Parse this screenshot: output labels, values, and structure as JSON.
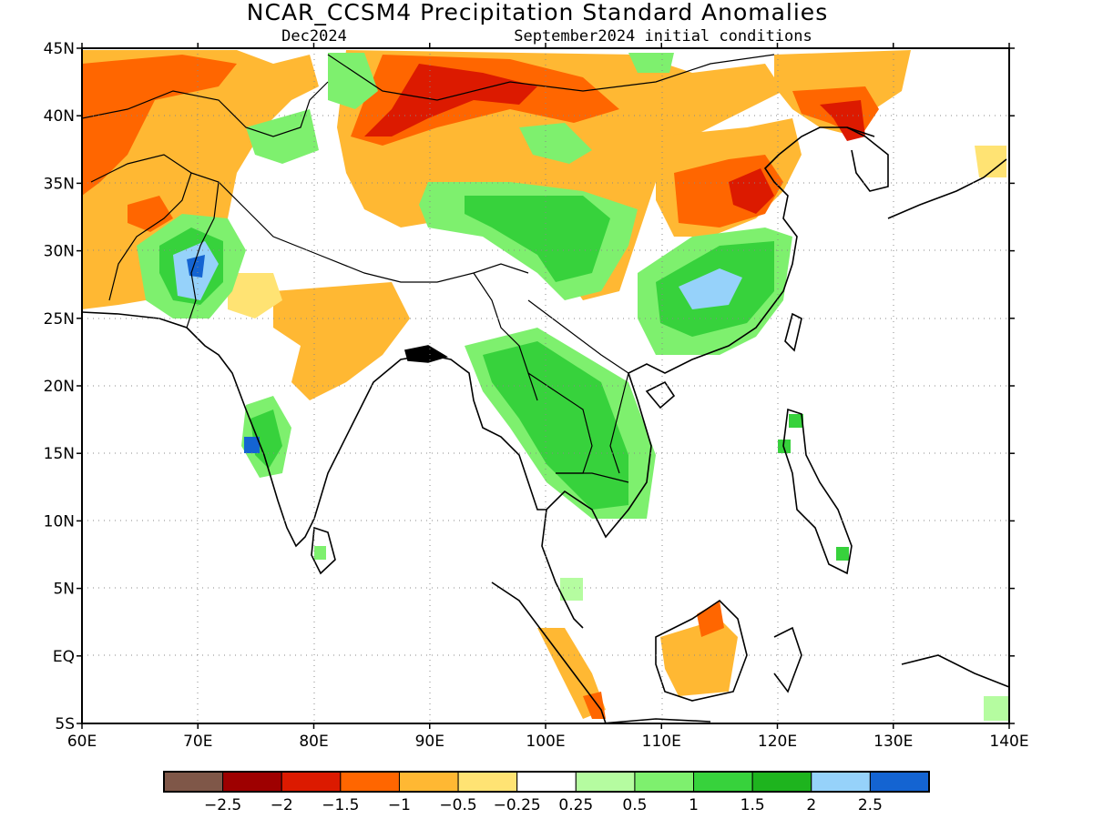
{
  "title": "NCAR_CCSM4 Precipitation Standard Anomalies",
  "subtitle_left": "Dec2024",
  "subtitle_right": "September2024 initial conditions",
  "map": {
    "lon_range": [
      60,
      140
    ],
    "lat_range": [
      -5,
      45
    ],
    "x_ticks": [
      "60E",
      "70E",
      "80E",
      "90E",
      "100E",
      "110E",
      "120E",
      "130E",
      "140E"
    ],
    "y_ticks": [
      "45N",
      "40N",
      "35N",
      "30N",
      "25N",
      "20N",
      "15N",
      "10N",
      "5N",
      "EQ",
      "5S"
    ],
    "grid": "dotted"
  },
  "colorbar": {
    "colors": [
      "#7f5748",
      "#9e0000",
      "#dc1a00",
      "#ff6600",
      "#ffb833",
      "#ffe373",
      "#ffffff",
      "#b5fca0",
      "#7ef06e",
      "#37d23c",
      "#1eb41e",
      "#96d2fa",
      "#1464d2"
    ],
    "labels": [
      "−2.5",
      "−2",
      "−1.5",
      "−1",
      "−0.5",
      "−0.25",
      "0.25",
      "0.5",
      "1",
      "1.5",
      "2",
      "2.5"
    ]
  },
  "anomaly_regions": [
    {
      "category": "-1",
      "color": "#ff6600",
      "lon": 62,
      "lat": 37
    },
    {
      "category": "-1",
      "color": "#ff6600",
      "lon": 66,
      "lat": 32
    },
    {
      "category": "-2",
      "color": "#9e0000",
      "lon": 91,
      "lat": 41
    },
    {
      "category": "-1.5",
      "color": "#dc1a00",
      "lon": 118,
      "lat": 34
    },
    {
      "category": "-1.5",
      "color": "#dc1a00",
      "lon": 126,
      "lat": 39
    },
    {
      "category": "2",
      "color": "#96d2fa",
      "lon": 70,
      "lat": 29
    },
    {
      "category": "2.5",
      "color": "#1464d2",
      "lon": 70,
      "lat": 29
    },
    {
      "category": "2",
      "color": "#96d2fa",
      "lon": 114,
      "lat": 27
    },
    {
      "category": "2.5",
      "color": "#1464d2",
      "lon": 74,
      "lat": 15.5
    },
    {
      "category": "1.5",
      "color": "#37d23c",
      "lon": 106,
      "lat": 15
    },
    {
      "category": "1",
      "color": "#7ef06e",
      "lon": 96,
      "lat": 33
    },
    {
      "category": "-1",
      "color": "#ff6600",
      "lon": 113,
      "lat": 3
    }
  ]
}
